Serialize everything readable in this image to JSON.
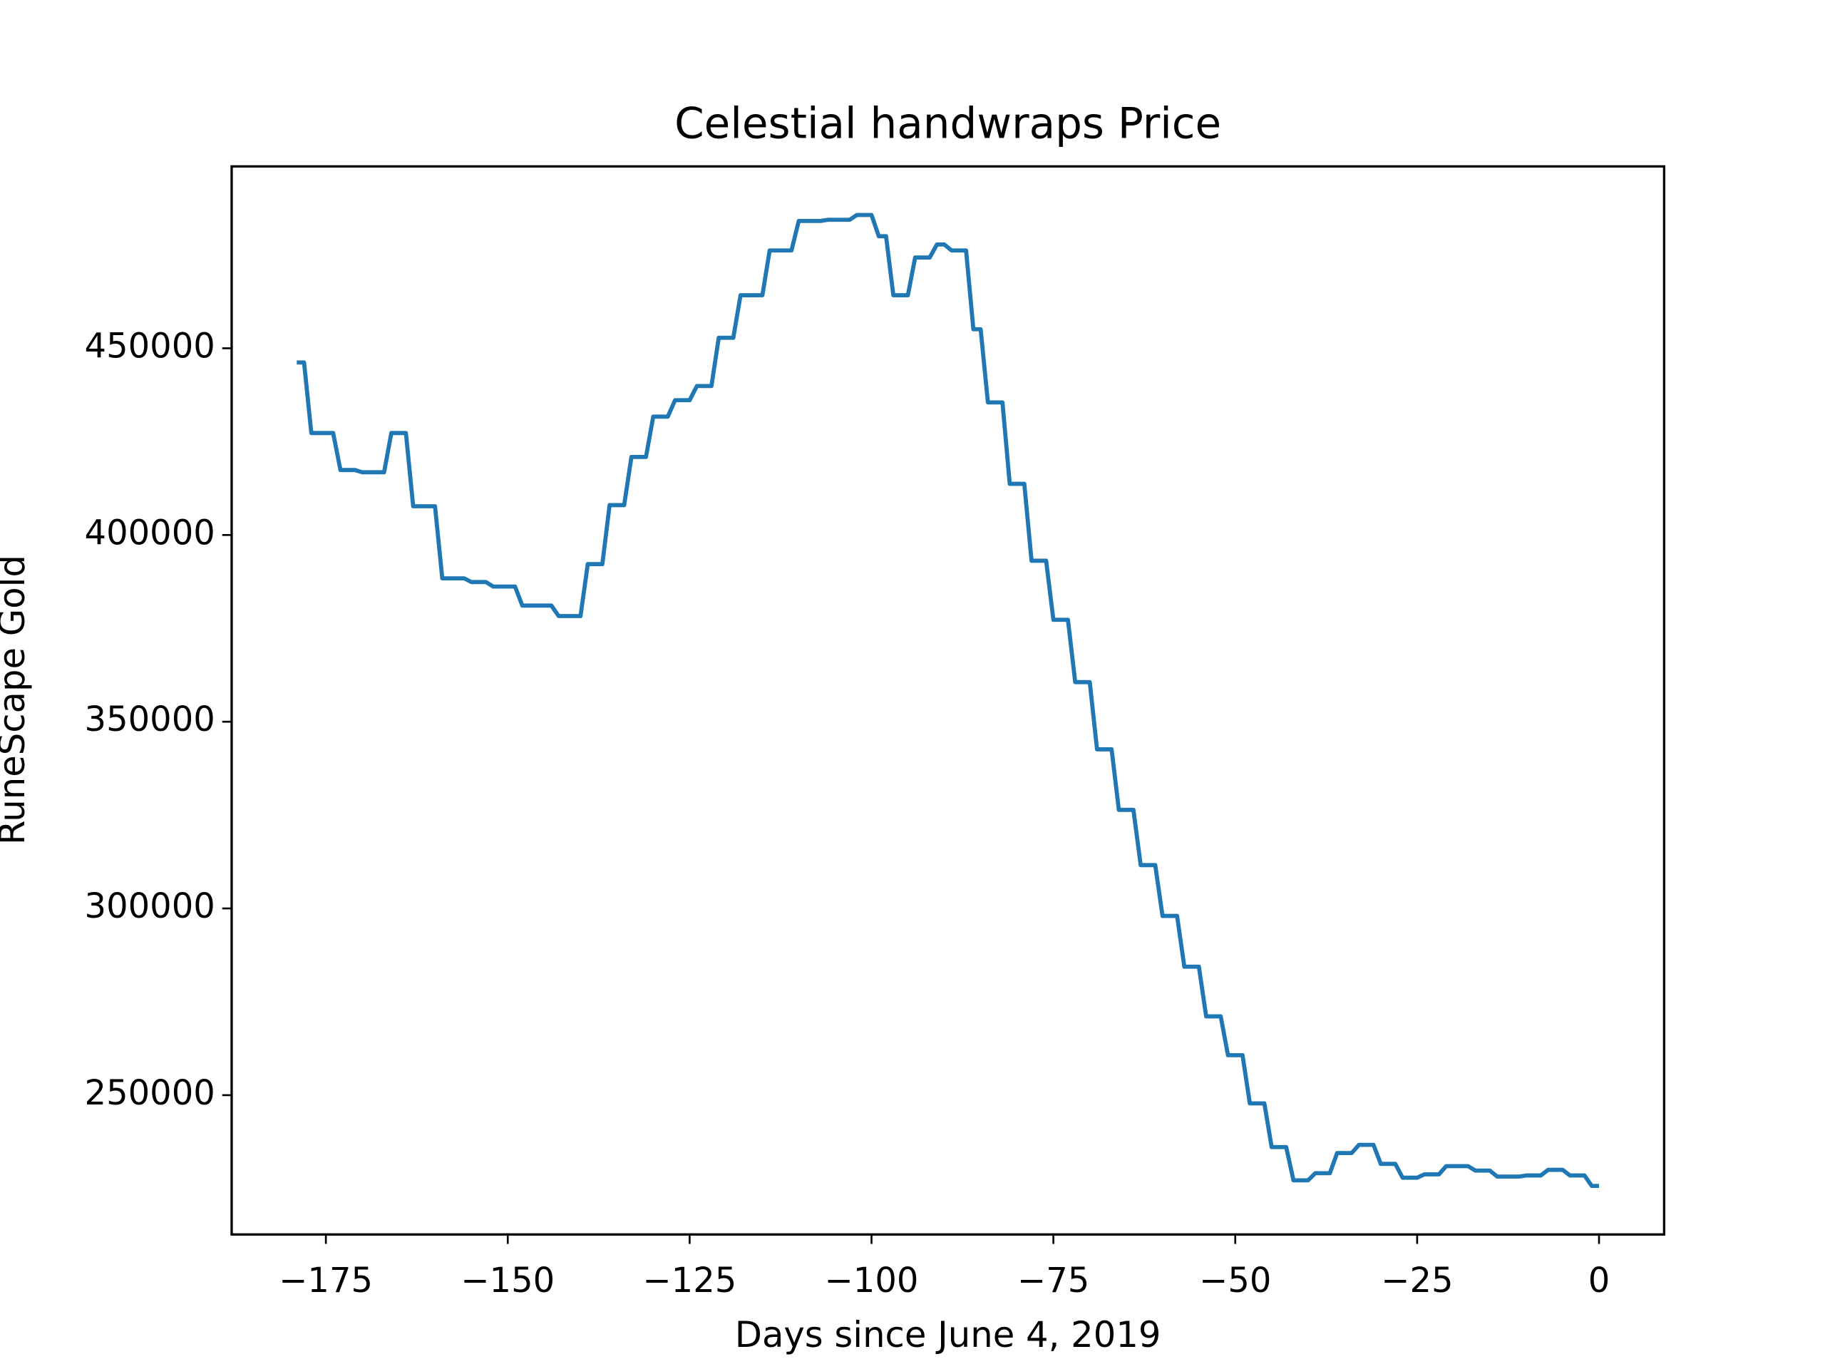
{
  "chart_data": {
    "type": "line",
    "title": "Celestial handwraps Price",
    "x_label": "Days since June 4, 2019",
    "y_label": "RuneScape Gold",
    "x": [
      -179,
      -178,
      -177,
      -176,
      -175,
      -174,
      -173,
      -172,
      -171,
      -170,
      -169,
      -168,
      -167,
      -166,
      -165,
      -164,
      -163,
      -162,
      -161,
      -160,
      -159,
      -158,
      -157,
      -156,
      -155,
      -154,
      -153,
      -152,
      -151,
      -150,
      -149,
      -148,
      -147,
      -146,
      -145,
      -144,
      -143,
      -142,
      -141,
      -140,
      -139,
      -138,
      -137,
      -136,
      -135,
      -134,
      -133,
      -132,
      -131,
      -130,
      -129,
      -128,
      -127,
      -126,
      -125,
      -124,
      -123,
      -122,
      -121,
      -120,
      -119,
      -118,
      -117,
      -116,
      -115,
      -114,
      -113,
      -112,
      -111,
      -110,
      -109,
      -108,
      -107,
      -106,
      -105,
      -104,
      -103,
      -102,
      -101,
      -100,
      -99,
      -98,
      -97,
      -96,
      -95,
      -94,
      -93,
      -92,
      -91,
      -90,
      -89,
      -88,
      -87,
      -86,
      -85,
      -84,
      -83,
      -82,
      -81,
      -80,
      -79,
      -78,
      -77,
      -76,
      -75,
      -74,
      -73,
      -72,
      -71,
      -70,
      -69,
      -68,
      -67,
      -66,
      -65,
      -64,
      -63,
      -62,
      -61,
      -60,
      -59,
      -58,
      -57,
      -56,
      -55,
      -54,
      -53,
      -52,
      -51,
      -50,
      -49,
      -48,
      -47,
      -46,
      -45,
      -44,
      -43,
      -42,
      -41,
      -40,
      -39,
      -38,
      -37,
      -36,
      -35,
      -34,
      -33,
      -32,
      -31,
      -30,
      -29,
      -28,
      -27,
      -26,
      -25,
      -24,
      -23,
      -22,
      -21,
      -20,
      -19,
      -18,
      -17,
      -16,
      -15,
      -14,
      -13,
      -12,
      -11,
      -10,
      -9,
      -8,
      -7,
      -6,
      -5,
      -4,
      -3,
      -2,
      -1,
      0
    ],
    "series": [
      {
        "name": "Celestial handwraps",
        "color": "#1f77b4",
        "values": [
          446200,
          446200,
          427300,
          427300,
          427300,
          427300,
          417400,
          417400,
          417400,
          416800,
          416800,
          416800,
          416800,
          427300,
          427300,
          427300,
          407700,
          407700,
          407700,
          407700,
          388400,
          388400,
          388400,
          388400,
          387400,
          387400,
          387400,
          386200,
          386200,
          386200,
          386200,
          381100,
          381100,
          381100,
          381100,
          381100,
          378300,
          378300,
          378300,
          378300,
          392200,
          392200,
          392200,
          408000,
          408000,
          408000,
          420900,
          420900,
          420900,
          431700,
          431700,
          431700,
          436100,
          436100,
          436100,
          439900,
          439900,
          439900,
          452800,
          452800,
          452800,
          464200,
          464200,
          464200,
          464200,
          476200,
          476200,
          476200,
          476200,
          484100,
          484100,
          484100,
          484100,
          484400,
          484400,
          484400,
          484400,
          485700,
          485700,
          485700,
          480000,
          480000,
          464200,
          464200,
          464200,
          474300,
          474300,
          474300,
          477800,
          477800,
          476200,
          476200,
          476200,
          455100,
          455100,
          435500,
          435500,
          435500,
          413700,
          413700,
          413700,
          393100,
          393100,
          393100,
          377300,
          377300,
          377300,
          360600,
          360600,
          360600,
          342600,
          342600,
          342600,
          326400,
          326400,
          326400,
          311600,
          311600,
          311600,
          298000,
          298000,
          298000,
          284400,
          284400,
          284400,
          271100,
          271100,
          271100,
          260700,
          260700,
          260700,
          247800,
          247800,
          247800,
          236100,
          236100,
          236100,
          227200,
          227200,
          227200,
          229100,
          229100,
          229100,
          234500,
          234500,
          234500,
          236700,
          236700,
          236700,
          231600,
          231600,
          231600,
          227900,
          227900,
          227900,
          228800,
          228800,
          228800,
          231000,
          231000,
          231000,
          231000,
          229800,
          229800,
          229800,
          228200,
          228200,
          228200,
          228200,
          228500,
          228500,
          228500,
          230000,
          230000,
          230000,
          228500,
          228500,
          228500,
          225700,
          225700
        ]
      }
    ],
    "xlim": [
      -187.95,
      8.95
    ],
    "ylim": [
      212700,
      498700
    ],
    "xticks": [
      {
        "value": -175,
        "label": "−175"
      },
      {
        "value": -150,
        "label": "−150"
      },
      {
        "value": -125,
        "label": "−125"
      },
      {
        "value": -100,
        "label": "−100"
      },
      {
        "value": -75,
        "label": "−75"
      },
      {
        "value": -50,
        "label": "−50"
      },
      {
        "value": -25,
        "label": "−25"
      },
      0
    ],
    "yticks": [
      250000,
      300000,
      350000,
      400000,
      450000
    ]
  }
}
